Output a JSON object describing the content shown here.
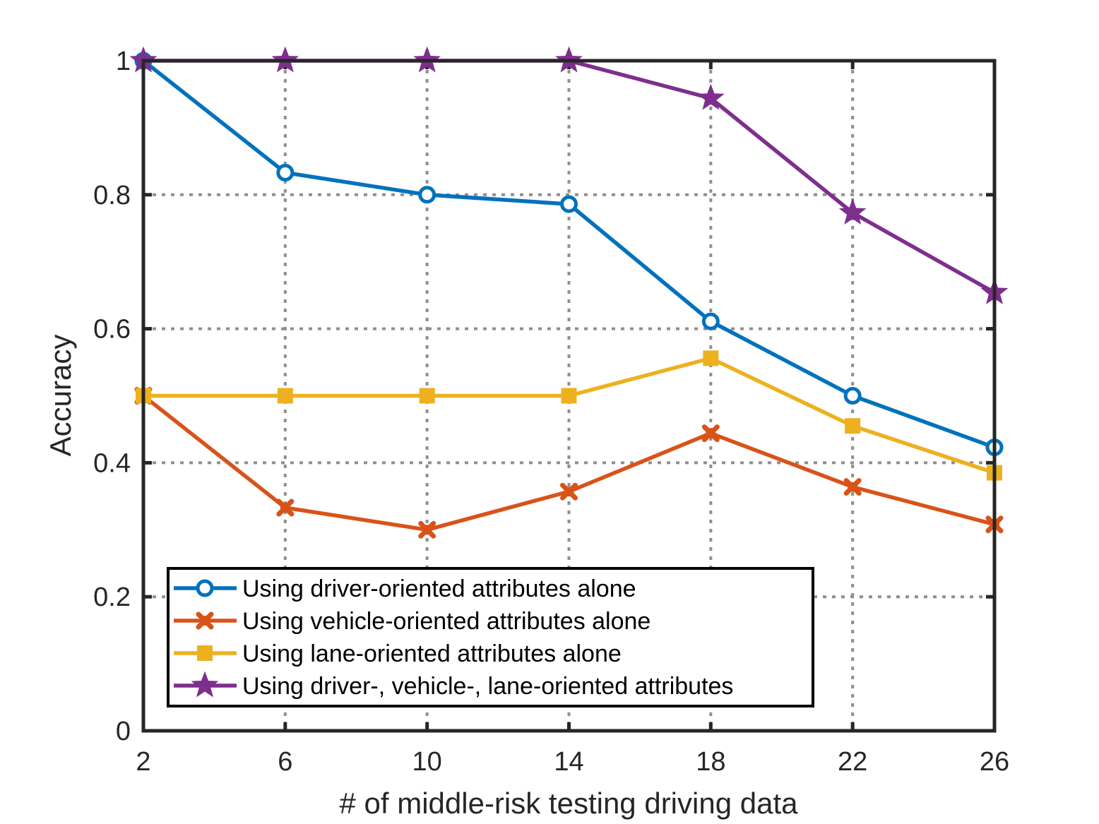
{
  "chart_data": {
    "type": "line",
    "xlabel": "# of middle-risk testing driving data",
    "ylabel": "Accuracy",
    "x": [
      2,
      6,
      10,
      14,
      18,
      22,
      26
    ],
    "xlim": [
      2,
      26
    ],
    "ylim": [
      0,
      1
    ],
    "xticks": [
      "2",
      "6",
      "10",
      "14",
      "18",
      "22",
      "26"
    ],
    "yticks": [
      "0",
      "0.2",
      "0.4",
      "0.6",
      "0.8",
      "1"
    ],
    "grid": true,
    "legend_position": "bottom-left",
    "series": [
      {
        "name": "Using driver-oriented attributes alone",
        "color": "#0072BD",
        "marker": "circle",
        "values": [
          1.0,
          0.833,
          0.8,
          0.786,
          0.611,
          0.5,
          0.423
        ]
      },
      {
        "name": "Using vehicle-oriented attributes alone",
        "color": "#D95319",
        "marker": "x",
        "values": [
          0.5,
          0.333,
          0.3,
          0.357,
          0.444,
          0.364,
          0.308
        ]
      },
      {
        "name": "Using lane-oriented attributes alone",
        "color": "#EDB120",
        "marker": "square",
        "values": [
          0.5,
          0.5,
          0.5,
          0.5,
          0.556,
          0.455,
          0.385
        ]
      },
      {
        "name": "Using driver-, vehicle-, lane-oriented attributes",
        "color": "#7E2F8E",
        "marker": "star",
        "values": [
          1.0,
          1.0,
          1.0,
          1.0,
          0.944,
          0.773,
          0.654
        ]
      }
    ]
  }
}
